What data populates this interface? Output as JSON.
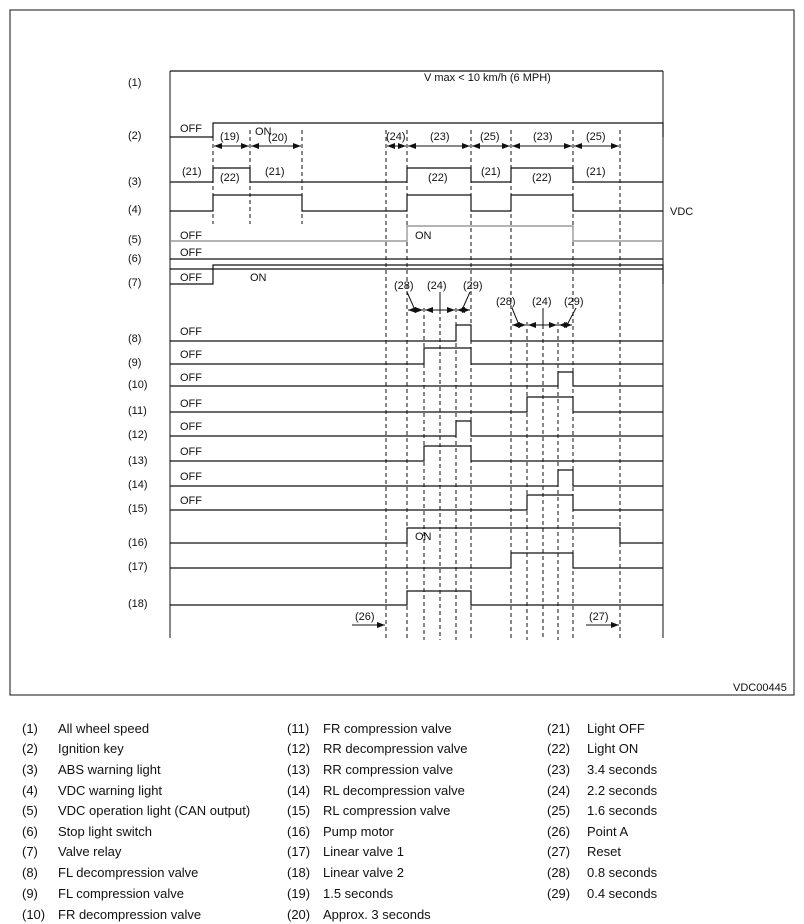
{
  "diagram": {
    "figure_code": "VDC00445",
    "speed_note": "V max < 10 km/h (6 MPH)",
    "vdc_tag": "VDC",
    "row_numbers": [
      "(1)",
      "(2)",
      "(3)",
      "(4)",
      "(5)",
      "(6)",
      "(7)",
      "(8)",
      "(9)",
      "(10)",
      "(11)",
      "(12)",
      "(13)",
      "(14)",
      "(15)",
      "(16)",
      "(17)",
      "(18)"
    ],
    "state_labels": {
      "off": "OFF",
      "on": "ON"
    },
    "interval_labels": {
      "i19": "(19)",
      "i20": "(20)",
      "i24a": "(24)",
      "i23a": "(23)",
      "i25a": "(25)",
      "i23b": "(23)",
      "i25b": "(25)",
      "l21a": "(21)",
      "l22a": "(22)",
      "l21b": "(21)",
      "l22b": "(22)",
      "l21c": "(21)",
      "l22c": "(22)",
      "l21d": "(21)",
      "p28a": "(28)",
      "p24a": "(24)",
      "p29a": "(29)",
      "p28b": "(28)",
      "p24b": "(24)",
      "p29b": "(29)",
      "point_a": "(26)",
      "reset": "(27)"
    },
    "signals": [
      {
        "row": 1,
        "high": []
      },
      {
        "row": 2,
        "high": [
          [
            1,
            16
          ]
        ]
      },
      {
        "row": 3,
        "high": [
          [
            1,
            2
          ],
          [
            5,
            9
          ],
          [
            10,
            14
          ]
        ]
      },
      {
        "row": 4,
        "high": [
          [
            1,
            3
          ],
          [
            5,
            9
          ],
          [
            10,
            14
          ]
        ]
      },
      {
        "row": 5,
        "high": [
          [
            5,
            14
          ]
        ],
        "color": "#888888"
      },
      {
        "row": 6,
        "high": []
      },
      {
        "row": 7,
        "high": [
          [
            1,
            16
          ]
        ]
      },
      {
        "row": 8,
        "high": [
          [
            8,
            9
          ]
        ]
      },
      {
        "row": 9,
        "high": [
          [
            6,
            9
          ]
        ]
      },
      {
        "row": 10,
        "high": [
          [
            13,
            14
          ]
        ]
      },
      {
        "row": 11,
        "high": [
          [
            11,
            14
          ]
        ]
      },
      {
        "row": 12,
        "high": [
          [
            8,
            9
          ]
        ]
      },
      {
        "row": 13,
        "high": [
          [
            6,
            9
          ]
        ]
      },
      {
        "row": 14,
        "high": [
          [
            13,
            14
          ]
        ]
      },
      {
        "row": 15,
        "high": [
          [
            11,
            14
          ]
        ]
      },
      {
        "row": 16,
        "high": [
          [
            5,
            15
          ]
        ]
      },
      {
        "row": 17,
        "high": [
          [
            10,
            14
          ]
        ]
      },
      {
        "row": 18,
        "high": [
          [
            5,
            9
          ]
        ]
      }
    ]
  },
  "legend": [
    {
      "n": "(1)",
      "t": "All wheel speed"
    },
    {
      "n": "(2)",
      "t": "Ignition key"
    },
    {
      "n": "(3)",
      "t": "ABS warning light"
    },
    {
      "n": "(4)",
      "t": "VDC warning light"
    },
    {
      "n": "(5)",
      "t": "VDC operation light (CAN output)"
    },
    {
      "n": "(6)",
      "t": "Stop light switch"
    },
    {
      "n": "(7)",
      "t": "Valve relay"
    },
    {
      "n": "(8)",
      "t": "FL decompression valve"
    },
    {
      "n": "(9)",
      "t": "FL compression valve"
    },
    {
      "n": "(10)",
      "t": "FR decompression valve"
    },
    {
      "n": "(11)",
      "t": "FR compression valve"
    },
    {
      "n": "(12)",
      "t": "RR decompression valve"
    },
    {
      "n": "(13)",
      "t": "RR compression valve"
    },
    {
      "n": "(14)",
      "t": "RL decompression valve"
    },
    {
      "n": "(15)",
      "t": "RL compression valve"
    },
    {
      "n": "(16)",
      "t": "Pump motor"
    },
    {
      "n": "(17)",
      "t": "Linear valve 1"
    },
    {
      "n": "(18)",
      "t": "Linear valve 2"
    },
    {
      "n": "(19)",
      "t": "1.5 seconds"
    },
    {
      "n": "(20)",
      "t": "Approx. 3 seconds"
    },
    {
      "n": "(21)",
      "t": "Light OFF"
    },
    {
      "n": "(22)",
      "t": "Light ON"
    },
    {
      "n": "(23)",
      "t": "3.4 seconds"
    },
    {
      "n": "(24)",
      "t": "2.2 seconds"
    },
    {
      "n": "(25)",
      "t": "1.6 seconds"
    },
    {
      "n": "(26)",
      "t": "Point A"
    },
    {
      "n": "(27)",
      "t": "Reset"
    },
    {
      "n": "(28)",
      "t": "0.8 seconds"
    },
    {
      "n": "(29)",
      "t": "0.4 seconds"
    }
  ]
}
